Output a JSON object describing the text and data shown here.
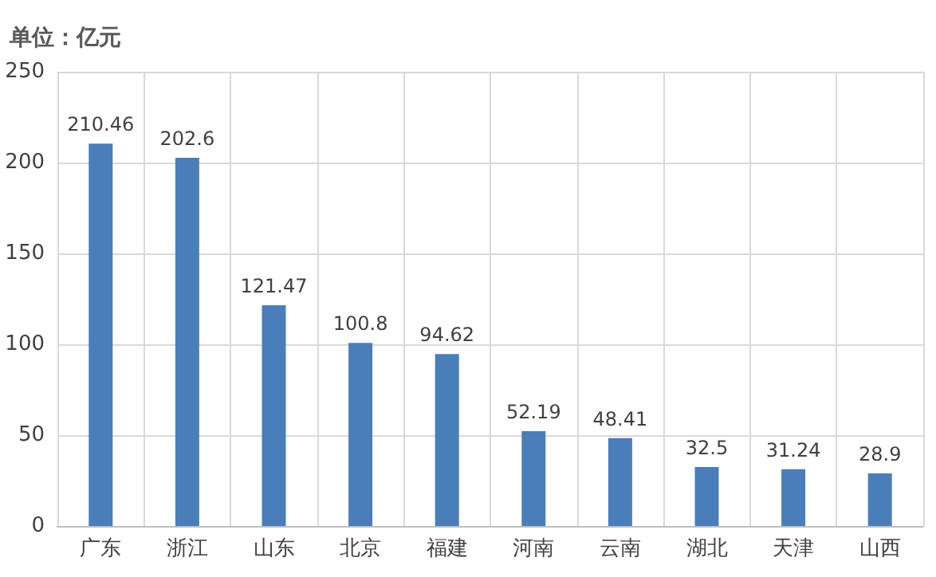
{
  "chart_data": {
    "type": "bar",
    "ylabel": "单位：亿元",
    "categories": [
      "广东",
      "浙江",
      "山东",
      "北京",
      "福建",
      "河南",
      "云南",
      "湖北",
      "天津",
      "山西"
    ],
    "values": [
      210.46,
      202.6,
      121.47,
      100.8,
      94.62,
      52.19,
      48.41,
      32.5,
      31.24,
      28.9
    ],
    "color": "#4a7ebb",
    "ylim": [
      0,
      250
    ],
    "yticks": [
      0,
      50,
      100,
      150,
      200,
      250
    ],
    "grid": true,
    "data_labels": true
  }
}
